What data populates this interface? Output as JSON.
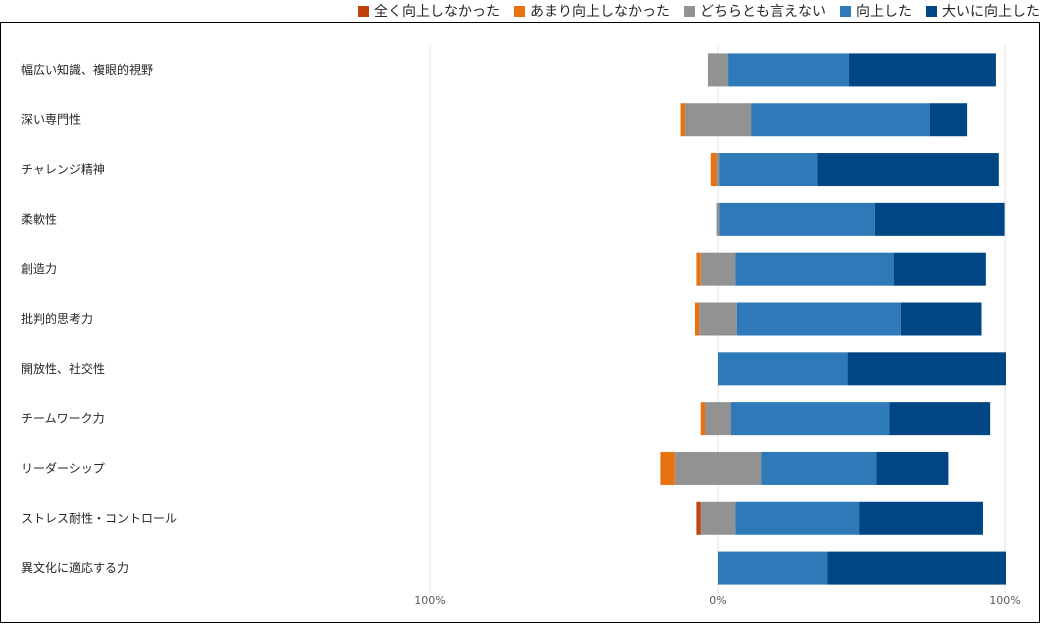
{
  "chart_data": {
    "type": "bar",
    "orientation": "horizontal",
    "stacked": "diverging",
    "categories": [
      "幅広い知識、複眼的視野",
      "深い専門性",
      "チャレンジ精神",
      "柔軟性",
      "創造力",
      "批判的思考力",
      "開放性、社交性",
      "チームワーク力",
      "リーダーシップ",
      "ストレス耐性・コントロール",
      "異文化に適応する力"
    ],
    "series": [
      {
        "name": "全く向上しなかった",
        "color": "#C0420C",
        "values": [
          0,
          0,
          0,
          0,
          0,
          0,
          0,
          0,
          0,
          1.5,
          0
        ]
      },
      {
        "name": "あまり向上しなかった",
        "color": "#E8720F",
        "values": [
          0,
          1.5,
          2,
          0,
          1.5,
          1.5,
          0,
          1.5,
          5,
          0,
          0
        ]
      },
      {
        "name": "どちらとも言えない",
        "color": "#929292",
        "values": [
          7,
          23,
          1,
          1,
          12,
          13,
          0,
          9,
          30,
          12,
          0
        ]
      },
      {
        "name": "向上した",
        "color": "#2E7AB8",
        "values": [
          42,
          62,
          34,
          54,
          55,
          57,
          45,
          55,
          40,
          43,
          38
        ]
      },
      {
        "name": "大いに向上した",
        "color": "#004684",
        "values": [
          51,
          13,
          63,
          45,
          32,
          28,
          55,
          35,
          25,
          43,
          62
        ]
      }
    ],
    "neutral_split": "centered",
    "xlim": [
      -100,
      100
    ],
    "ticks": [
      "100%",
      "0%",
      "100%"
    ],
    "legend_position": "top",
    "grid": true
  }
}
